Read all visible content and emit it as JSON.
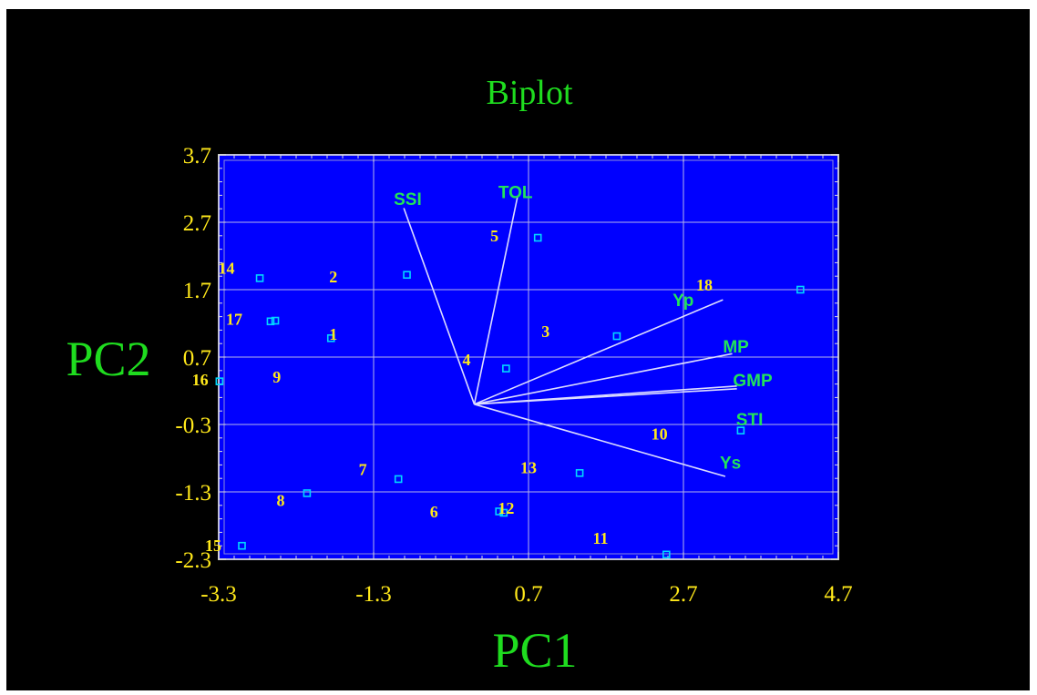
{
  "chart_data": {
    "type": "scatter",
    "title": "Biplot",
    "xlabel": "PC1",
    "ylabel": "PC2",
    "xlim": [
      -3.3,
      4.7
    ],
    "ylim": [
      -2.3,
      3.7
    ],
    "xticks": [
      "-3.3",
      "-1.3",
      "0.7",
      "2.7",
      "4.7"
    ],
    "yticks": [
      "3.7",
      "2.7",
      "1.7",
      "0.7",
      "-0.3",
      "-1.3",
      "-2.3"
    ],
    "grid": true,
    "colors": {
      "background": "#000000",
      "plot_area": "#0000ff",
      "markers": "#00d8ff",
      "vectors": "#dcdcff",
      "tick_labels": "#ffe81a",
      "point_labels": "#ffe81a",
      "variable_labels": "#22e35a",
      "axis_titles": "#1fdc1f"
    },
    "points": [
      {
        "label": "1",
        "x": -1.85,
        "y": 0.98,
        "label_x": -1.82,
        "label_y": 1.04
      },
      {
        "label": "2",
        "x": -0.87,
        "y": 1.92,
        "label_x": -1.82,
        "label_y": 1.89
      },
      {
        "label": "3",
        "x": 1.84,
        "y": 1.01,
        "label_x": 0.92,
        "label_y": 1.08
      },
      {
        "label": "4",
        "x": 0.41,
        "y": 0.53,
        "label_x": -0.1,
        "label_y": 0.66
      },
      {
        "label": "5",
        "x": 0.82,
        "y": 2.47,
        "label_x": 0.26,
        "label_y": 2.5
      },
      {
        "label": "6",
        "x": 0.38,
        "y": -1.61,
        "label_x": -0.52,
        "label_y": -1.6
      },
      {
        "label": "7",
        "x": -0.98,
        "y": -1.11,
        "label_x": -1.44,
        "label_y": -0.97
      },
      {
        "label": "8",
        "x": -2.16,
        "y": -1.32,
        "label_x": -2.5,
        "label_y": -1.43
      },
      {
        "label": "9",
        "x": -2.57,
        "y": 1.24,
        "label_x": -2.55,
        "label_y": 0.4
      },
      {
        "label": "10",
        "x": 3.44,
        "y": -0.39,
        "label_x": 2.39,
        "label_y": -0.44
      },
      {
        "label": "11",
        "x": 2.48,
        "y": -2.23,
        "label_x": 1.63,
        "label_y": -1.99
      },
      {
        "label": "12",
        "x": 0.32,
        "y": -1.59,
        "label_x": 0.41,
        "label_y": -1.54
      },
      {
        "label": "13",
        "x": 1.36,
        "y": -1.02,
        "label_x": 0.7,
        "label_y": -0.94
      },
      {
        "label": "14",
        "x": -2.77,
        "y": 1.87,
        "label_x": -3.2,
        "label_y": 2.02
      },
      {
        "label": "15",
        "x": -3.0,
        "y": -2.1,
        "label_x": -3.37,
        "label_y": -2.1
      },
      {
        "label": "16",
        "x": -3.29,
        "y": 0.34,
        "label_x": -3.54,
        "label_y": 0.36
      },
      {
        "label": "17",
        "x": -2.63,
        "y": 1.23,
        "label_x": -3.1,
        "label_y": 1.26
      },
      {
        "label": "18",
        "x": 4.21,
        "y": 1.7,
        "label_x": 2.97,
        "label_y": 1.77
      }
    ],
    "vectors": [
      {
        "name": "SSI",
        "x": -0.91,
        "y": 2.91,
        "label_x": -1.04,
        "label_y": 3.05
      },
      {
        "name": "TOL",
        "x": 0.56,
        "y": 3.09,
        "label_x": 0.31,
        "label_y": 3.15
      },
      {
        "name": "Yp",
        "x": 3.21,
        "y": 1.55,
        "label_x": 2.56,
        "label_y": 1.55
      },
      {
        "name": "MP",
        "x": 3.33,
        "y": 0.75,
        "label_x": 3.21,
        "label_y": 0.86
      },
      {
        "name": "GMP",
        "x": 3.39,
        "y": 0.27,
        "label_x": 3.34,
        "label_y": 0.36
      },
      {
        "name": "STI",
        "x": 3.39,
        "y": 0.23,
        "label_x": 3.38,
        "label_y": -0.22
      },
      {
        "name": "Ys",
        "x": 3.24,
        "y": -1.07,
        "label_x": 3.17,
        "label_y": -0.86
      }
    ]
  }
}
